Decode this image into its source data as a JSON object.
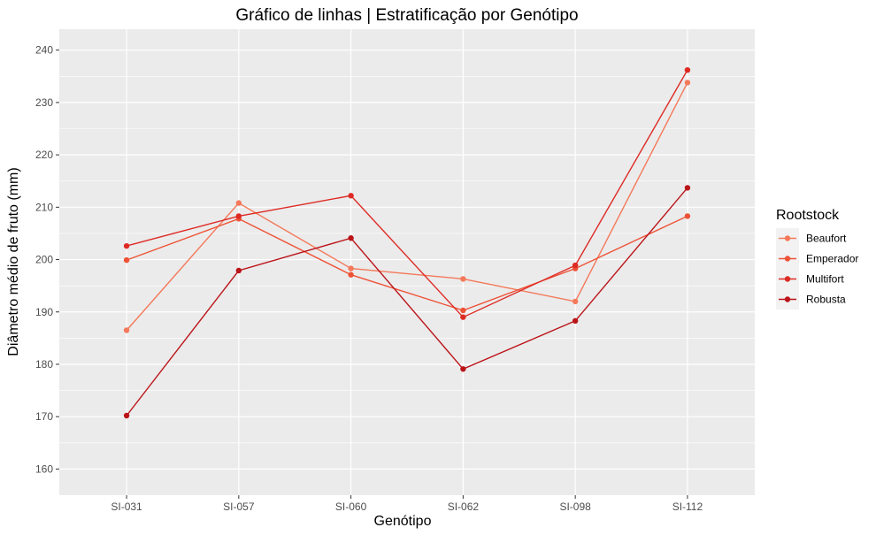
{
  "chart_data": {
    "type": "line",
    "title": "Gráfico de linhas | Estratificação por Genótipo",
    "xlabel": "Genótipo",
    "ylabel": "Diâmetro médio de fruto (mm)",
    "categories": [
      "SI-031",
      "SI-057",
      "SI-060",
      "SI-062",
      "SI-098",
      "SI-112"
    ],
    "ylim": [
      155,
      244
    ],
    "yticks": [
      160,
      170,
      180,
      190,
      200,
      210,
      220,
      230,
      240
    ],
    "grid": true,
    "legend": {
      "title": "Rootstock",
      "position": "right"
    },
    "series": [
      {
        "name": "Beaufort",
        "color": "#F4795A",
        "values": [
          186.5,
          210.8,
          198.3,
          196.3,
          192.0,
          233.8
        ]
      },
      {
        "name": "Emperador",
        "color": "#EE5236",
        "values": [
          199.9,
          207.8,
          197.1,
          190.3,
          198.3,
          208.3
        ]
      },
      {
        "name": "Multifort",
        "color": "#DE2A24",
        "values": [
          202.6,
          208.3,
          212.2,
          189.0,
          198.9,
          236.2
        ]
      },
      {
        "name": "Robusta",
        "color": "#BB1419",
        "values": [
          170.2,
          197.9,
          204.1,
          179.1,
          188.3,
          213.7
        ]
      }
    ]
  }
}
